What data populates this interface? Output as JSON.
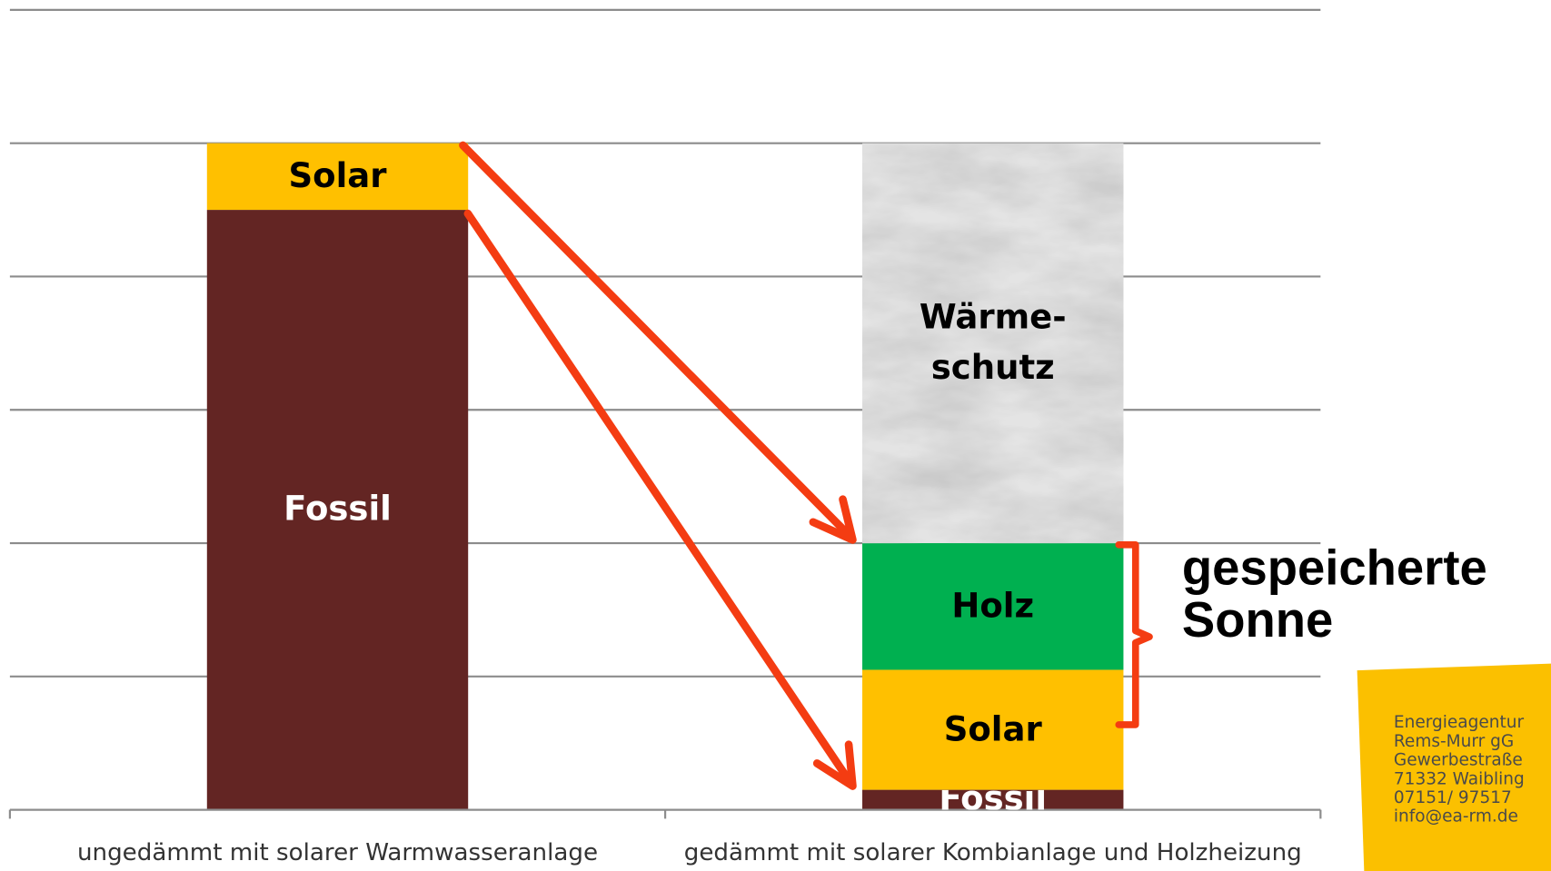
{
  "chart_data": {
    "type": "stacked-bar",
    "categories": [
      "ungedämmt mit solarer Warmwasseranlage",
      "gedämmt mit solarer Kombianlage und Holzheizung"
    ],
    "series": [
      {
        "name": "Fossil",
        "color": "#632523",
        "values": [
          4.5,
          0.15
        ]
      },
      {
        "name": "Solar",
        "color": "#ffc000",
        "values": [
          0.5,
          0.9
        ]
      },
      {
        "name": "Holz",
        "color": "#00b050",
        "values": [
          null,
          0.95
        ]
      },
      {
        "name": "Wärme-schutz",
        "color": "#e4e4e4",
        "values": [
          null,
          3
        ]
      }
    ],
    "ylim": [
      0,
      6
    ],
    "yticks": [
      0,
      1,
      2,
      3,
      4,
      5,
      6
    ],
    "grid": true,
    "annotation": "gespeicherte Sonne"
  },
  "contact_box": {
    "lines": [
      "Energieagentur",
      "Rems-Murr gG",
      "Gewerbestraße",
      "71332 Waibling",
      "07151/ 97517",
      "info@ea-rm.de"
    ]
  }
}
